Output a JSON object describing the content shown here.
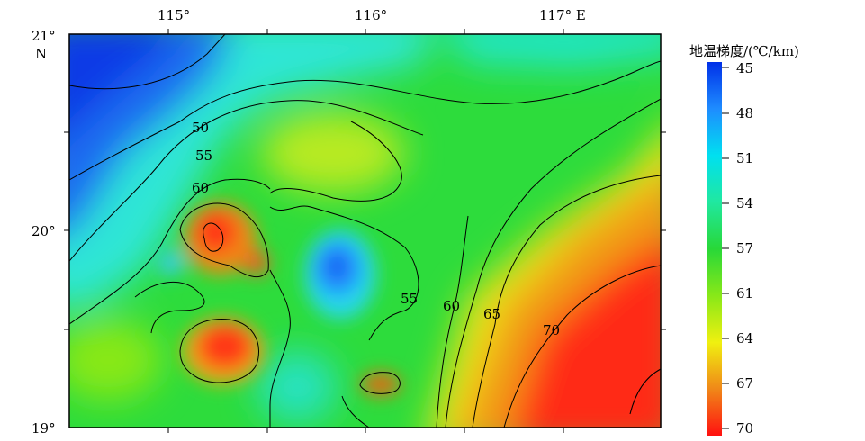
{
  "map": {
    "x_ticks": [
      "115°",
      "116°",
      "117° E"
    ],
    "y_ticks": [
      "21°",
      "N",
      "20°",
      "19°"
    ],
    "contour_labels": [
      "50",
      "55",
      "60",
      "55",
      "60",
      "65",
      "70"
    ]
  },
  "legend": {
    "title": "地温梯度/(℃/km)",
    "labels": [
      "45",
      "48",
      "51",
      "54",
      "57",
      "61",
      "64",
      "67",
      "70"
    ],
    "colors": [
      "#0030e8",
      "#1e8cff",
      "#00e0f0",
      "#20e8a0",
      "#28d838",
      "#88e818",
      "#f0f010",
      "#f08818",
      "#ff1010"
    ]
  }
}
